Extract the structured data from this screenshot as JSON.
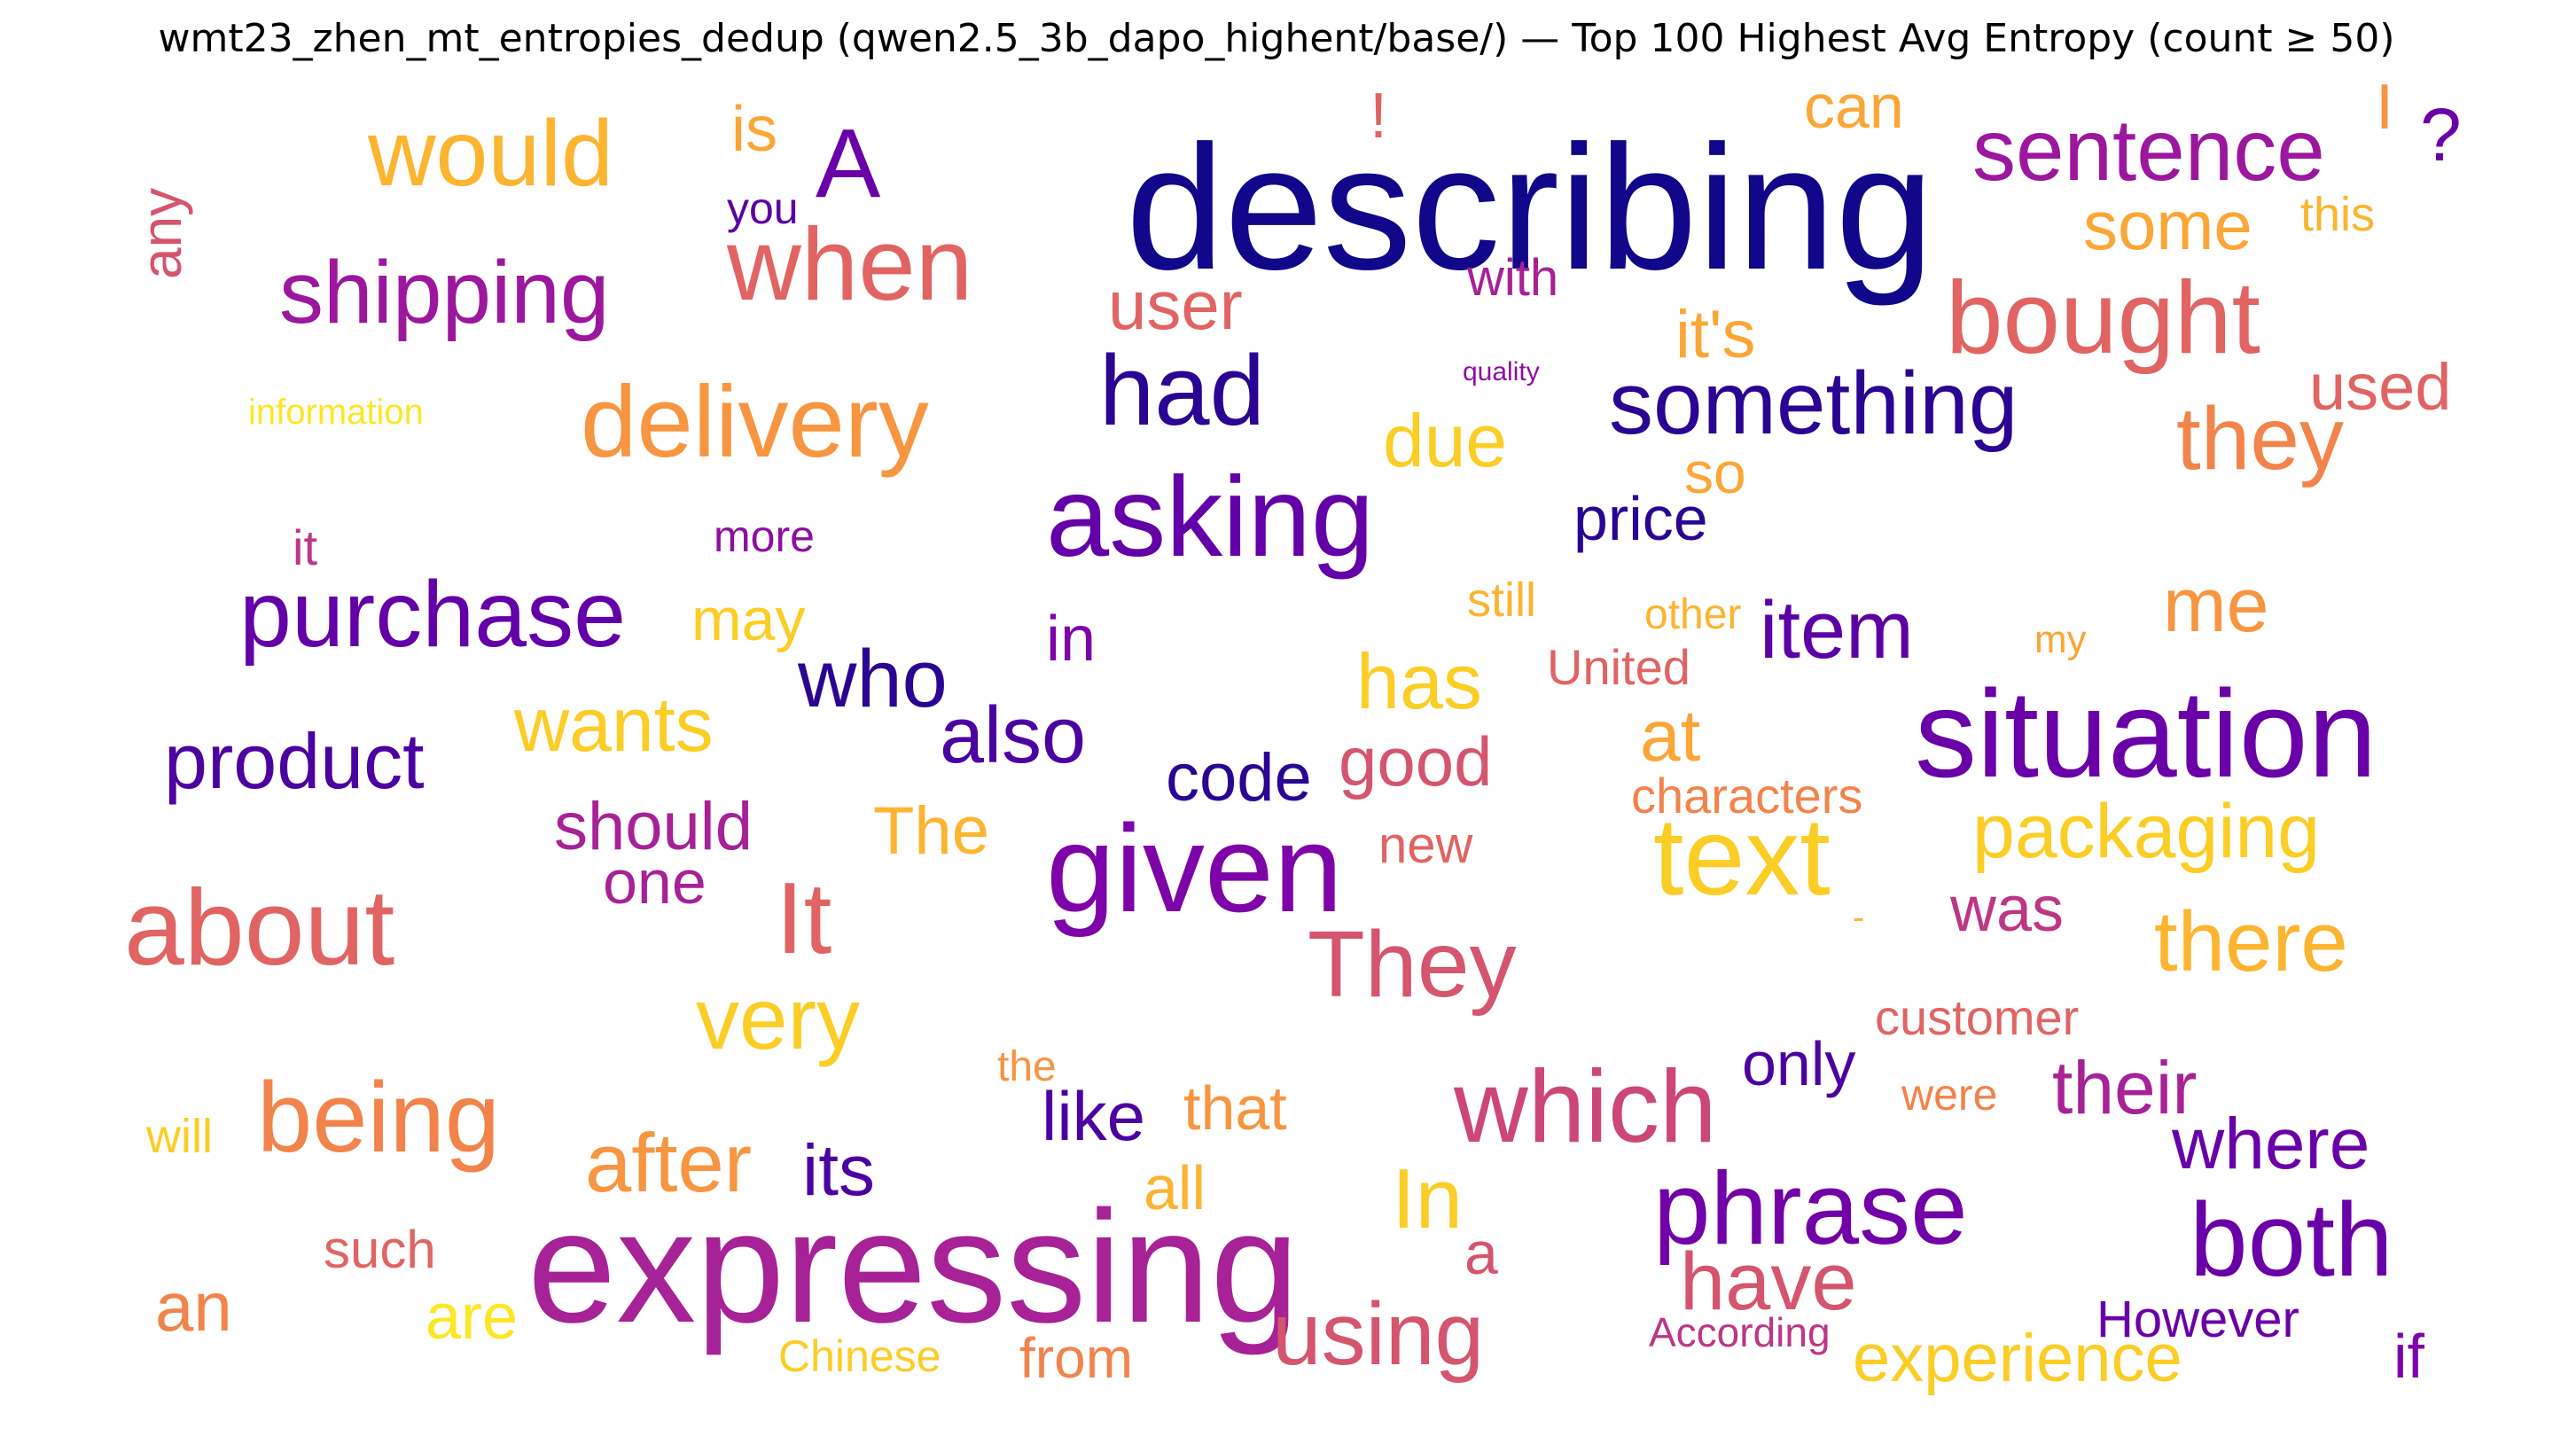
{
  "title": "wmt23_zhen_mt_entropies_dedup (qwen2.5_3b_dapo_highent/base/) — Top 100 Highest Avg Entropy (count ≥ 50)",
  "chart_data": {
    "type": "wordcloud",
    "title": "wmt23_zhen_mt_entropies_dedup (qwen2.5_3b_dapo_highent/base/) — Top 100 Highest Avg Entropy (count ≥ 50)",
    "colormap": "plasma",
    "words": [
      {
        "text": "describing",
        "weight": 100,
        "color": "#10078a"
      },
      {
        "text": "expressing",
        "weight": 92,
        "color": "#a72197"
      },
      {
        "text": "situation",
        "weight": 80,
        "color": "#6a00a8"
      },
      {
        "text": "given",
        "weight": 80,
        "color": "#7e03a8"
      },
      {
        "text": "asking",
        "weight": 72,
        "color": "#6300a7"
      },
      {
        "text": "about",
        "weight": 72,
        "color": "#e16462"
      },
      {
        "text": "text",
        "weight": 70,
        "color": "#fcce25"
      },
      {
        "text": "which",
        "weight": 68,
        "color": "#cc4778"
      },
      {
        "text": "phrase",
        "weight": 68,
        "color": "#7201a8"
      },
      {
        "text": "both",
        "weight": 66,
        "color": "#6a00a8"
      },
      {
        "text": "bought",
        "weight": 64,
        "color": "#e16462"
      },
      {
        "text": "delivery",
        "weight": 64,
        "color": "#f89540"
      },
      {
        "text": "being",
        "weight": 64,
        "color": "#f2844b"
      },
      {
        "text": "purchase",
        "weight": 62,
        "color": "#6300a7"
      },
      {
        "text": "when",
        "weight": 62,
        "color": "#e16462"
      },
      {
        "text": "They",
        "weight": 60,
        "color": "#d5546e"
      },
      {
        "text": "had",
        "weight": 60,
        "color": "#2a0593"
      },
      {
        "text": "would",
        "weight": 60,
        "color": "#fdb42f"
      },
      {
        "text": "It",
        "weight": 60,
        "color": "#e16462"
      },
      {
        "text": "using",
        "weight": 58,
        "color": "#d5546e"
      },
      {
        "text": "something",
        "weight": 56,
        "color": "#2a0593"
      },
      {
        "text": "sentence",
        "weight": 56,
        "color": "#9c179e"
      },
      {
        "text": "they",
        "weight": 56,
        "color": "#f2844b"
      },
      {
        "text": "shipping",
        "weight": 56,
        "color": "#9c179e"
      },
      {
        "text": "very",
        "weight": 56,
        "color": "#fcce25"
      },
      {
        "text": "A",
        "weight": 56,
        "color": "#6a00a8"
      },
      {
        "text": "there",
        "weight": 54,
        "color": "#fdb42f"
      },
      {
        "text": "after",
        "weight": 54,
        "color": "#f89540"
      },
      {
        "text": "In",
        "weight": 54,
        "color": "#fccd25"
      },
      {
        "text": "product",
        "weight": 52,
        "color": "#4c02a1"
      },
      {
        "text": "have",
        "weight": 52,
        "color": "#d5546e"
      },
      {
        "text": "packaging",
        "weight": 50,
        "color": "#fcce25"
      },
      {
        "text": "also",
        "weight": 50,
        "color": "#4c02a1"
      },
      {
        "text": "who",
        "weight": 50,
        "color": "#2a0593"
      },
      {
        "text": "wants",
        "weight": 50,
        "color": "#fccd25"
      },
      {
        "text": "item",
        "weight": 50,
        "color": "#5c01a6"
      },
      {
        "text": "me",
        "weight": 50,
        "color": "#f89540"
      },
      {
        "text": "due",
        "weight": 48,
        "color": "#fcce25"
      },
      {
        "text": "has",
        "weight": 48,
        "color": "#fcce25"
      },
      {
        "text": "where",
        "weight": 48,
        "color": "#6a00a8"
      },
      {
        "text": "their",
        "weight": 48,
        "color": "#a72197"
      },
      {
        "text": "experience",
        "weight": 46,
        "color": "#fccd25"
      },
      {
        "text": "its",
        "weight": 46,
        "color": "#4c02a1"
      },
      {
        "text": "good",
        "weight": 46,
        "color": "#d5546e"
      },
      {
        "text": "at",
        "weight": 46,
        "color": "#fca636"
      },
      {
        "text": "like",
        "weight": 44,
        "color": "#4c02a1"
      },
      {
        "text": "some",
        "weight": 44,
        "color": "#fca636"
      },
      {
        "text": "user",
        "weight": 44,
        "color": "#e16462"
      },
      {
        "text": "it's",
        "weight": 44,
        "color": "#fca636"
      },
      {
        "text": "used",
        "weight": 42,
        "color": "#e16462"
      },
      {
        "text": "should",
        "weight": 42,
        "color": "#a72197"
      },
      {
        "text": "code",
        "weight": 42,
        "color": "#2a0593"
      },
      {
        "text": "The",
        "weight": 42,
        "color": "#fdb42f"
      },
      {
        "text": "an",
        "weight": 42,
        "color": "#f2844b"
      },
      {
        "text": "from",
        "weight": 40,
        "color": "#f2844b"
      },
      {
        "text": "price",
        "weight": 40,
        "color": "#2a0593"
      },
      {
        "text": "only",
        "weight": 40,
        "color": "#4c02a1"
      },
      {
        "text": "if",
        "weight": 40,
        "color": "#7e03a8"
      },
      {
        "text": "can",
        "weight": 40,
        "color": "#fca636"
      },
      {
        "text": "was",
        "weight": 40,
        "color": "#bd3786"
      },
      {
        "text": "may",
        "weight": 40,
        "color": "#fccd25"
      },
      {
        "text": "is",
        "weight": 40,
        "color": "#fca636"
      },
      {
        "text": "one",
        "weight": 40,
        "color": "#a72197"
      },
      {
        "text": "are",
        "weight": 40,
        "color": "#fde725"
      },
      {
        "text": "that",
        "weight": 40,
        "color": "#f89540"
      },
      {
        "text": "all",
        "weight": 40,
        "color": "#fdb42f"
      },
      {
        "text": "a",
        "weight": 40,
        "color": "#d5546e"
      },
      {
        "text": "in",
        "weight": 38,
        "color": "#7e03a8"
      },
      {
        "text": "any",
        "weight": 36,
        "color": "#d5546e"
      },
      {
        "text": "?",
        "weight": 36,
        "color": "#6a00a8"
      },
      {
        "text": "so",
        "weight": 36,
        "color": "#fca636"
      },
      {
        "text": "However",
        "weight": 34,
        "color": "#6a00a8"
      },
      {
        "text": "with",
        "weight": 34,
        "color": "#a72197"
      },
      {
        "text": "new",
        "weight": 34,
        "color": "#e16462"
      },
      {
        "text": "customer",
        "weight": 34,
        "color": "#e16462"
      },
      {
        "text": "such",
        "weight": 34,
        "color": "#e16462"
      },
      {
        "text": "!",
        "weight": 34,
        "color": "#e16462"
      },
      {
        "text": "I",
        "weight": 34,
        "color": "#f89540"
      },
      {
        "text": "characters",
        "weight": 32,
        "color": "#f2844b"
      },
      {
        "text": "United",
        "weight": 32,
        "color": "#e16462"
      },
      {
        "text": "Chinese",
        "weight": 30,
        "color": "#fccd25"
      },
      {
        "text": "will",
        "weight": 30,
        "color": "#fccd25"
      },
      {
        "text": "this",
        "weight": 30,
        "color": "#fdb42f"
      },
      {
        "text": "it",
        "weight": 30,
        "color": "#bd3786"
      },
      {
        "text": "still",
        "weight": 30,
        "color": "#fdb42f"
      },
      {
        "text": "were",
        "weight": 28,
        "color": "#f2844b"
      },
      {
        "text": "more",
        "weight": 28,
        "color": "#8f0da4"
      },
      {
        "text": "According",
        "weight": 28,
        "color": "#bd3786"
      },
      {
        "text": "you",
        "weight": 28,
        "color": "#5c01a6"
      },
      {
        "text": "other",
        "weight": 28,
        "color": "#fdb42f"
      },
      {
        "text": "the",
        "weight": 26,
        "color": "#f89540"
      },
      {
        "text": "my",
        "weight": 26,
        "color": "#fca636"
      },
      {
        "text": "information",
        "weight": 22,
        "color": "#fde725"
      },
      {
        "text": "quality",
        "weight": 18,
        "color": "#8f0da4"
      },
      {
        "text": "-",
        "weight": 20,
        "color": "#fdb42f"
      }
    ]
  }
}
